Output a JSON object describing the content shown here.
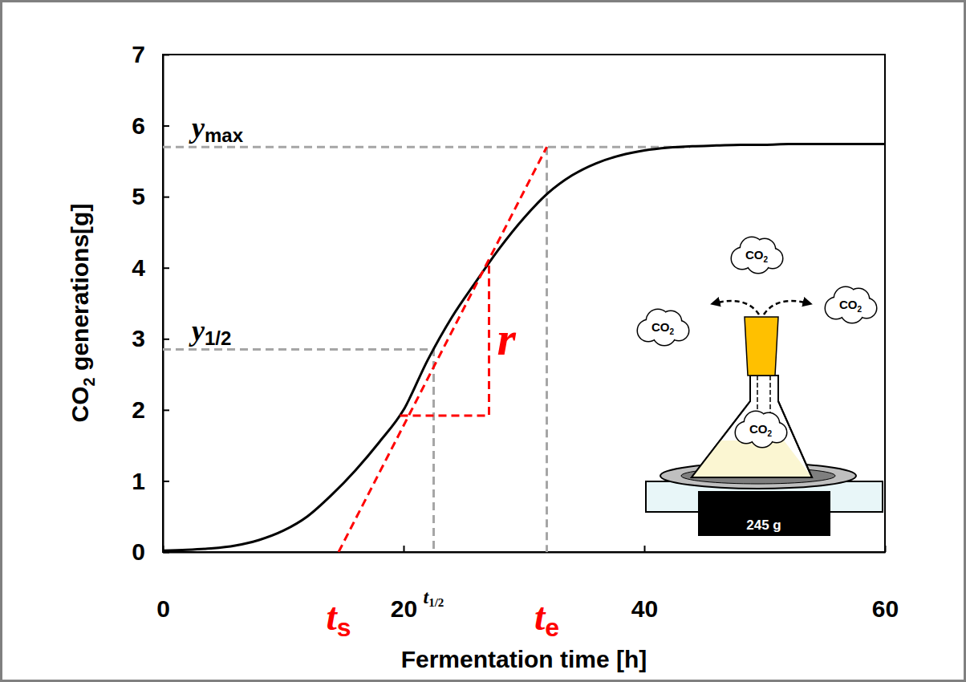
{
  "chart_data": {
    "type": "line",
    "x_label": "Fermentation time [h]",
    "y_label": {
      "main": "CO",
      "sub": "2",
      "rest": " generations[g]"
    },
    "x": [
      0,
      2,
      4,
      6,
      8,
      10,
      12,
      14,
      16,
      18,
      20,
      22,
      24,
      26,
      28,
      30,
      32,
      34,
      36,
      38,
      40,
      42,
      44,
      46,
      48,
      50,
      52,
      54,
      56,
      58,
      60
    ],
    "series": [
      {
        "color": "#000000",
        "values": [
          0.02,
          0.03,
          0.05,
          0.09,
          0.17,
          0.3,
          0.5,
          0.8,
          1.15,
          1.55,
          2.0,
          2.7,
          3.3,
          3.8,
          4.28,
          4.7,
          5.05,
          5.3,
          5.47,
          5.58,
          5.65,
          5.69,
          5.71,
          5.72,
          5.73,
          5.73,
          5.74,
          5.74,
          5.74,
          5.74,
          5.74
        ]
      }
    ],
    "xlim": [
      0,
      60
    ],
    "ylim": [
      0,
      7
    ],
    "xticks": [
      0,
      20,
      40,
      60
    ],
    "yticks": [
      0,
      1,
      2,
      3,
      4,
      5,
      6,
      7
    ],
    "grid": false,
    "annotations": {
      "y_max": {
        "label": {
          "main": "y",
          "sub": "max"
        },
        "y": 5.7,
        "x_end": 43.8
      },
      "y_half": {
        "label": {
          "main": "y",
          "sub": "1/2"
        },
        "y": 2.85
      },
      "t_half": {
        "label": {
          "main": "t",
          "sub": "1/2"
        },
        "x": 22.5
      },
      "t_s": {
        "label": {
          "main": "t",
          "sub": "s"
        },
        "x": 14.6
      },
      "t_e": {
        "label": {
          "main": "t",
          "sub": "e"
        },
        "x": 31.9
      },
      "r": {
        "label": "r",
        "x": [
          19.7,
          27.1
        ],
        "y": [
          1.92,
          4.05
        ]
      }
    },
    "illustration": {
      "gas_labels": [
        {
          "main": "CO",
          "sub": "2"
        },
        {
          "main": "CO",
          "sub": "2"
        },
        {
          "main": "CO",
          "sub": "2"
        },
        {
          "main": "CO",
          "sub": "2"
        }
      ],
      "scale_reading": "245 g"
    }
  }
}
